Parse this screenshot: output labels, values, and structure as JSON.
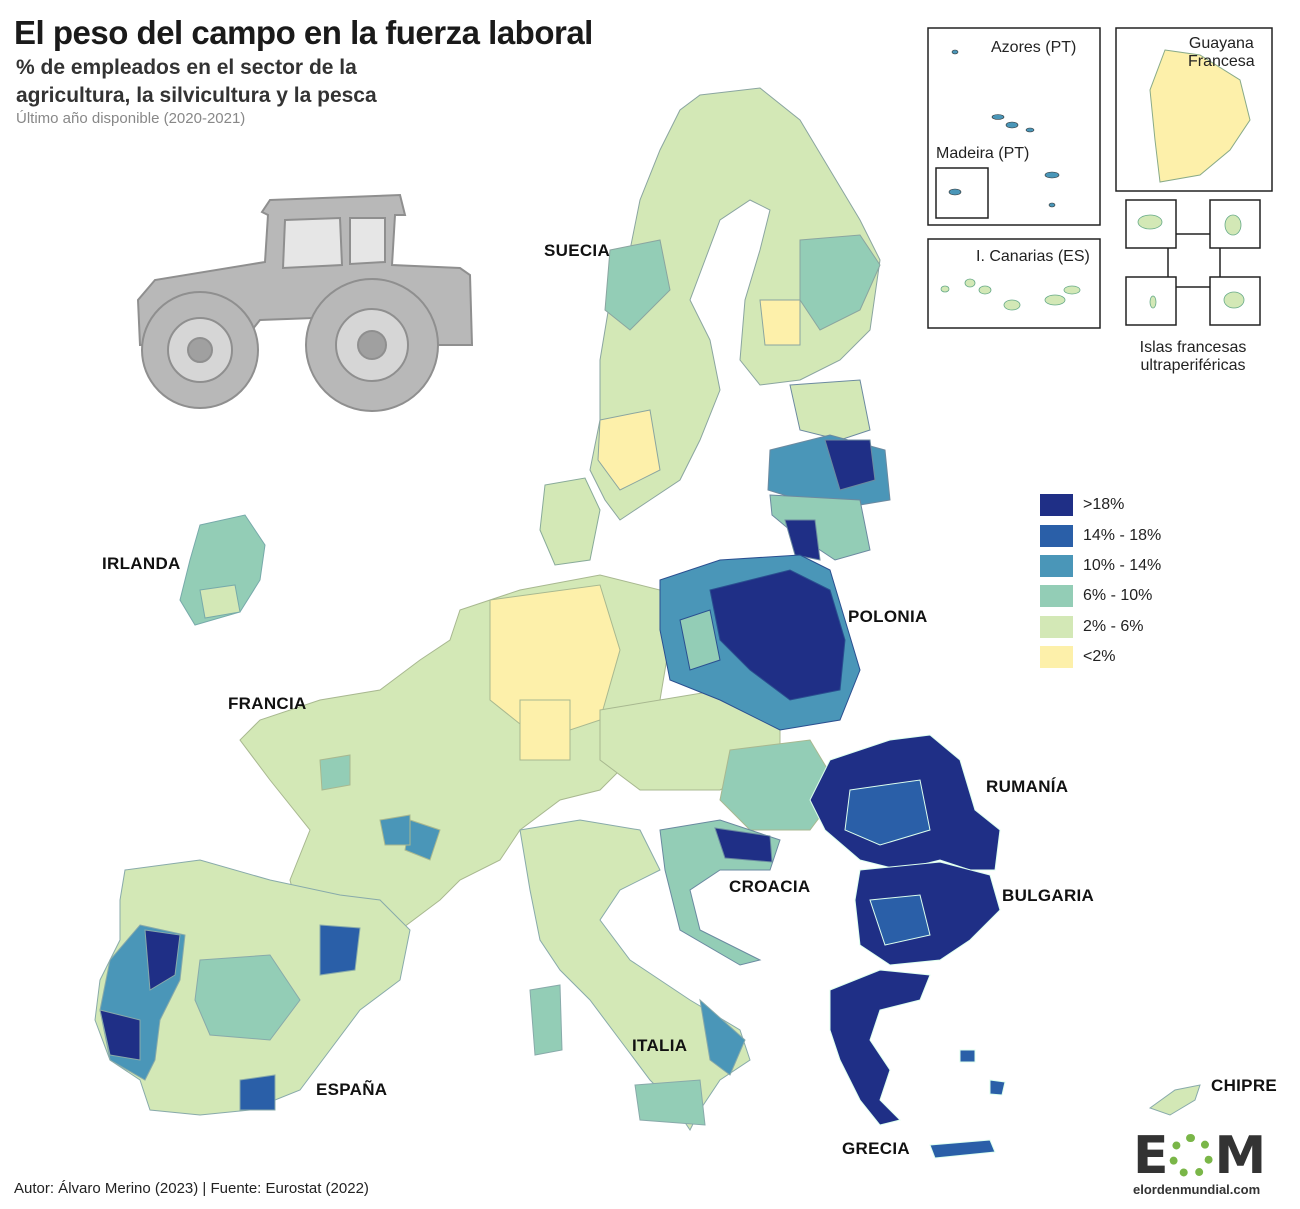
{
  "header": {
    "title": "El peso del campo en la fuerza laboral",
    "subtitle_line1": "% de empleados en el sector de la",
    "subtitle_line2": "agricultura, la silvicultura y la pesca",
    "note": "Último año disponible (2020-2021)"
  },
  "legend": {
    "items": [
      {
        "label": ">18%",
        "color": "#1f2f86"
      },
      {
        "label": "14% - 18%",
        "color": "#2a5fa8"
      },
      {
        "label": "10% - 14%",
        "color": "#4a96b8"
      },
      {
        "label": "6% - 10%",
        "color": "#93cdb6"
      },
      {
        "label": "2% - 6%",
        "color": "#d3e8b6"
      },
      {
        "label": "<2%",
        "color": "#fdf0aa"
      }
    ]
  },
  "countries": {
    "suecia": "SUECIA",
    "irlanda": "IRLANDA",
    "francia": "FRANCIA",
    "polonia": "POLONIA",
    "rumania": "RUMANÍA",
    "croacia": "CROACIA",
    "bulgaria": "BULGARIA",
    "espana": "ESPAÑA",
    "italia": "ITALIA",
    "grecia": "GRECIA",
    "chipre": "CHIPRE"
  },
  "insets": {
    "azores": "Azores (PT)",
    "madeira": "Madeira (PT)",
    "guayana_line1": "Guayana",
    "guayana_line2": "Francesa",
    "canarias": "I. Canarias (ES)",
    "islas_line1": "Islas francesas",
    "islas_line2": "ultraperiféricas"
  },
  "footer": "Autor: Álvaro Merino (2023) | Fuente: Eurostat (2022)",
  "logo": {
    "letter_e": "E",
    "letter_m": "M",
    "site": "elordenmundial.com"
  },
  "palette": {
    "over18": "#1f2f86",
    "p14_18": "#2a5fa8",
    "p10_14": "#4a96b8",
    "p6_10": "#93cdb6",
    "p2_6": "#d3e8b6",
    "under2": "#fdf0aa",
    "tractor": "#b5b5b5"
  }
}
